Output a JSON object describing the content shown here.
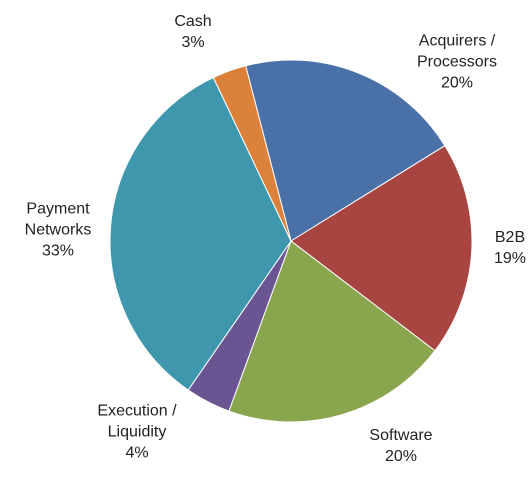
{
  "chart_data": {
    "type": "pie",
    "categories": [
      "Acquirers / Processors",
      "B2B",
      "Software",
      "Execution / Liquidity",
      "Payment Networks",
      "Cash"
    ],
    "values": [
      20,
      19,
      20,
      4,
      33,
      3
    ],
    "value_labels": [
      "20%",
      "19%",
      "20%",
      "4%",
      "33%",
      "3%"
    ],
    "colors": [
      "#4a70a8",
      "#a84541",
      "#89a64e",
      "#6a5592",
      "#3e97ad",
      "#dc813a"
    ]
  }
}
